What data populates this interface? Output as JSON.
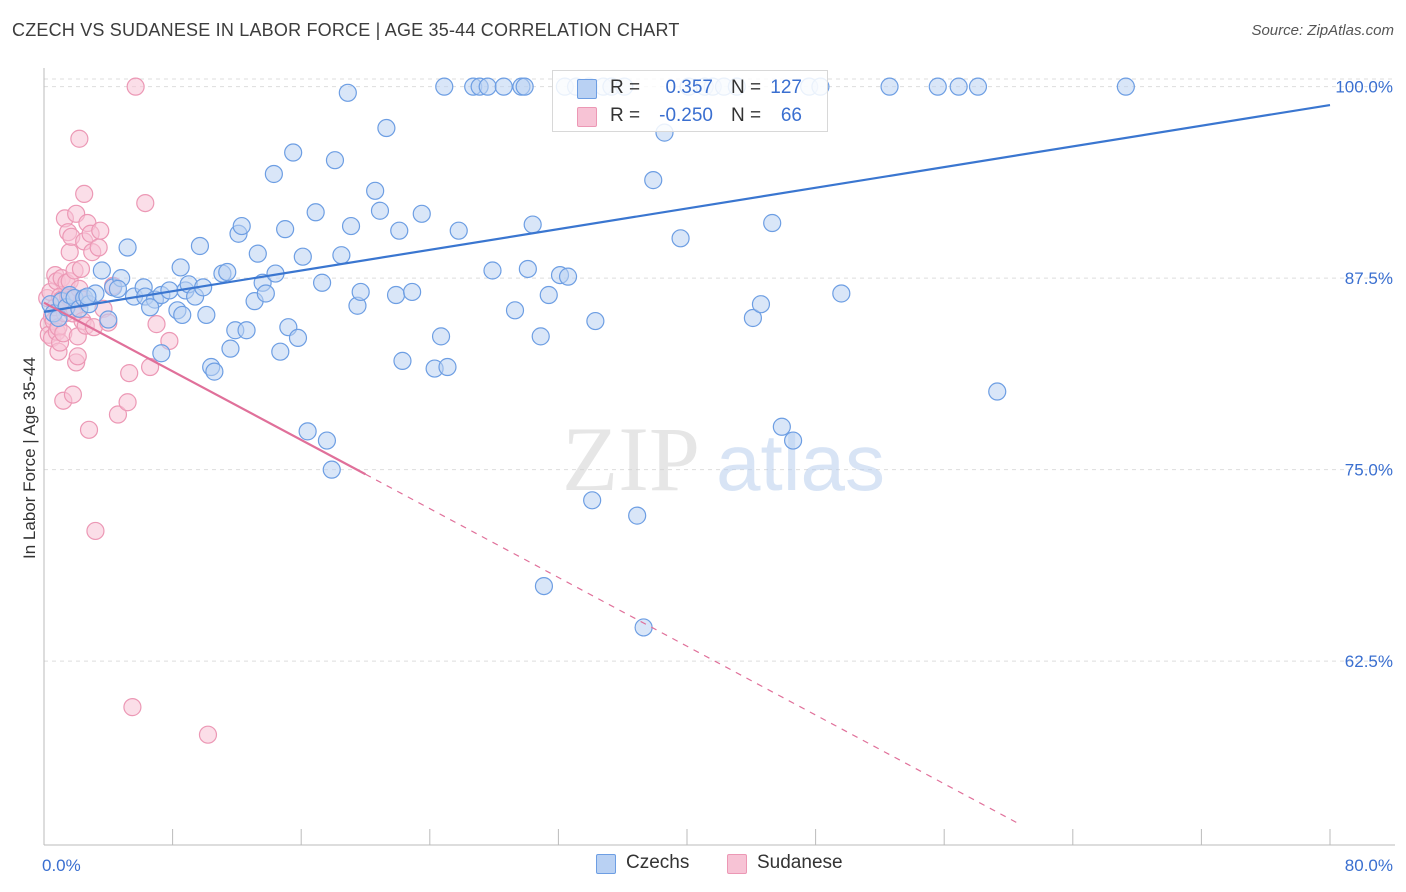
{
  "header": {
    "title": "CZECH VS SUDANESE IN LABOR FORCE | AGE 35-44 CORRELATION CHART",
    "source": "Source: ZipAtlas.com"
  },
  "watermark": {
    "zip": "ZIP",
    "atlas": "atlas"
  },
  "legend": {
    "czech": {
      "r_label": "R =",
      "r_value": "0.357",
      "n_label": "N =",
      "n_value": "127"
    },
    "sudanese": {
      "r_label": "R =",
      "r_value": "-0.250",
      "n_label": "N =",
      "n_value": "66"
    }
  },
  "bottom_legend": {
    "czechs": "Czechs",
    "sudanese": "Sudanese"
  },
  "colors": {
    "czech_fill": "#b9d1f3",
    "czech_stroke": "#6d9ee3",
    "czech_line": "#3a76d0",
    "sudanese_fill": "#f7c3d5",
    "sudanese_stroke": "#ec98b5",
    "sudanese_line": "#e0709a",
    "axis_text": "#3a6fd0",
    "grid": "#dddddd"
  },
  "chart_data": {
    "type": "scatter",
    "title": "CZECH VS SUDANESE IN LABOR FORCE | AGE 35-44 CORRELATION CHART",
    "xlabel": "",
    "ylabel": "In Labor Force | Age 35-44",
    "xlim": [
      0,
      80
    ],
    "ylim": [
      50.5,
      100.5
    ],
    "x_tick_labels": [
      "0.0%",
      "80.0%"
    ],
    "y_ticks": [
      62.5,
      75.0,
      87.5,
      100.0
    ],
    "y_tick_labels": [
      "62.5%",
      "75.0%",
      "87.5%",
      "100.0%"
    ],
    "grid": true,
    "series": [
      {
        "name": "Czechs",
        "r": 0.357,
        "n": 127,
        "trend": {
          "x": [
            0.0,
            80.0
          ],
          "y": [
            85.3,
            98.8
          ],
          "style": "solid"
        },
        "points": [
          [
            0.4,
            85.8
          ],
          [
            0.6,
            85.2
          ],
          [
            0.9,
            84.9
          ],
          [
            1.1,
            86.0
          ],
          [
            1.4,
            85.6
          ],
          [
            1.6,
            86.4
          ],
          [
            1.9,
            86.2
          ],
          [
            2.2,
            85.5
          ],
          [
            2.5,
            86.2
          ],
          [
            2.8,
            85.8
          ],
          [
            3.2,
            86.5
          ],
          [
            3.6,
            88.0
          ],
          [
            4.0,
            84.8
          ],
          [
            4.3,
            86.9
          ],
          [
            4.8,
            87.5
          ],
          [
            5.2,
            89.5
          ],
          [
            5.6,
            86.3
          ],
          [
            6.2,
            86.9
          ],
          [
            6.3,
            86.3
          ],
          [
            6.9,
            86.1
          ],
          [
            7.3,
            86.4
          ],
          [
            7.3,
            82.6
          ],
          [
            7.8,
            86.7
          ],
          [
            8.3,
            85.4
          ],
          [
            8.5,
            88.2
          ],
          [
            8.6,
            85.1
          ],
          [
            8.8,
            86.7
          ],
          [
            9.0,
            87.1
          ],
          [
            9.4,
            86.3
          ],
          [
            9.7,
            89.6
          ],
          [
            9.9,
            86.9
          ],
          [
            10.1,
            85.1
          ],
          [
            10.4,
            81.7
          ],
          [
            10.6,
            81.4
          ],
          [
            11.1,
            87.8
          ],
          [
            11.4,
            87.9
          ],
          [
            11.6,
            82.9
          ],
          [
            11.9,
            84.1
          ],
          [
            12.1,
            90.4
          ],
          [
            12.3,
            90.9
          ],
          [
            12.6,
            84.1
          ],
          [
            13.1,
            86.0
          ],
          [
            13.3,
            89.1
          ],
          [
            13.6,
            87.2
          ],
          [
            13.8,
            86.5
          ],
          [
            14.3,
            94.3
          ],
          [
            14.4,
            87.8
          ],
          [
            14.7,
            82.7
          ],
          [
            15.0,
            90.7
          ],
          [
            15.2,
            84.3
          ],
          [
            15.5,
            95.7
          ],
          [
            15.8,
            83.6
          ],
          [
            16.1,
            88.9
          ],
          [
            16.4,
            77.5
          ],
          [
            16.9,
            91.8
          ],
          [
            17.3,
            87.2
          ],
          [
            17.6,
            76.9
          ],
          [
            17.9,
            75.0
          ],
          [
            18.1,
            95.2
          ],
          [
            18.5,
            89.0
          ],
          [
            18.9,
            99.6
          ],
          [
            19.1,
            90.9
          ],
          [
            19.5,
            85.7
          ],
          [
            19.7,
            86.6
          ],
          [
            20.6,
            93.2
          ],
          [
            20.9,
            91.9
          ],
          [
            21.3,
            97.3
          ],
          [
            21.9,
            86.4
          ],
          [
            22.1,
            90.6
          ],
          [
            22.3,
            82.1
          ],
          [
            22.9,
            86.6
          ],
          [
            23.5,
            91.7
          ],
          [
            24.3,
            81.6
          ],
          [
            24.7,
            83.7
          ],
          [
            24.9,
            100.0
          ],
          [
            25.1,
            81.7
          ],
          [
            25.8,
            90.6
          ],
          [
            26.7,
            100.0
          ],
          [
            27.1,
            100.0
          ],
          [
            27.6,
            100.0
          ],
          [
            27.9,
            88.0
          ],
          [
            28.6,
            100.0
          ],
          [
            29.3,
            85.4
          ],
          [
            29.7,
            100.0
          ],
          [
            29.9,
            100.0
          ],
          [
            30.1,
            88.1
          ],
          [
            30.4,
            91.0
          ],
          [
            30.9,
            83.7
          ],
          [
            31.1,
            67.4
          ],
          [
            31.4,
            86.4
          ],
          [
            32.1,
            87.7
          ],
          [
            32.4,
            100.0
          ],
          [
            32.6,
            87.6
          ],
          [
            33.1,
            100.0
          ],
          [
            33.9,
            100.0
          ],
          [
            34.1,
            73.0
          ],
          [
            34.3,
            84.7
          ],
          [
            34.8,
            100.0
          ],
          [
            35.3,
            100.0
          ],
          [
            36.1,
            100.0
          ],
          [
            36.9,
            72.0
          ],
          [
            37.3,
            64.7
          ],
          [
            37.9,
            93.9
          ],
          [
            38.6,
            97.0
          ],
          [
            39.6,
            90.1
          ],
          [
            40.1,
            100.0
          ],
          [
            41.1,
            100.0
          ],
          [
            41.6,
            100.0
          ],
          [
            42.3,
            100.0
          ],
          [
            43.1,
            100.0
          ],
          [
            44.1,
            84.9
          ],
          [
            44.6,
            85.8
          ],
          [
            45.3,
            91.1
          ],
          [
            45.9,
            77.8
          ],
          [
            46.6,
            76.9
          ],
          [
            47.6,
            100.0
          ],
          [
            48.3,
            100.0
          ],
          [
            49.6,
            86.5
          ],
          [
            52.6,
            100.0
          ],
          [
            55.6,
            100.0
          ],
          [
            56.9,
            100.0
          ],
          [
            58.1,
            100.0
          ],
          [
            59.3,
            80.1
          ],
          [
            67.3,
            100.0
          ],
          [
            2.7,
            86.3
          ],
          [
            4.6,
            86.8
          ],
          [
            6.6,
            85.6
          ]
        ]
      },
      {
        "name": "Sudanese",
        "r": -0.25,
        "n": 66,
        "trend": {
          "x": [
            0.0,
            20.0,
            60.8
          ],
          "y": [
            85.9,
            74.7,
            51.8
          ],
          "style": "solid-then-dashed"
        },
        "points": [
          [
            0.2,
            86.2
          ],
          [
            0.3,
            84.5
          ],
          [
            0.3,
            83.8
          ],
          [
            0.4,
            86.6
          ],
          [
            0.5,
            85.0
          ],
          [
            0.5,
            83.6
          ],
          [
            0.6,
            84.7
          ],
          [
            0.7,
            85.6
          ],
          [
            0.7,
            87.7
          ],
          [
            0.8,
            87.3
          ],
          [
            0.8,
            84.0
          ],
          [
            0.9,
            82.7
          ],
          [
            0.9,
            84.3
          ],
          [
            1.0,
            86.3
          ],
          [
            1.0,
            83.3
          ],
          [
            1.1,
            87.5
          ],
          [
            1.1,
            86.1
          ],
          [
            1.2,
            83.9
          ],
          [
            1.2,
            79.5
          ],
          [
            1.3,
            85.2
          ],
          [
            1.3,
            91.4
          ],
          [
            1.4,
            87.2
          ],
          [
            1.4,
            85.6
          ],
          [
            1.5,
            90.5
          ],
          [
            1.5,
            86.3
          ],
          [
            1.6,
            89.2
          ],
          [
            1.6,
            87.3
          ],
          [
            1.7,
            90.2
          ],
          [
            1.7,
            86.1
          ],
          [
            1.8,
            85.2
          ],
          [
            1.8,
            79.9
          ],
          [
            1.9,
            88.0
          ],
          [
            1.9,
            85.5
          ],
          [
            2.0,
            91.7
          ],
          [
            2.0,
            82.0
          ],
          [
            2.1,
            82.4
          ],
          [
            2.1,
            83.7
          ],
          [
            2.2,
            96.6
          ],
          [
            2.2,
            86.8
          ],
          [
            2.3,
            88.1
          ],
          [
            2.4,
            84.7
          ],
          [
            2.4,
            86.1
          ],
          [
            2.5,
            93.0
          ],
          [
            2.5,
            89.9
          ],
          [
            2.6,
            84.4
          ],
          [
            2.7,
            91.1
          ],
          [
            2.8,
            77.6
          ],
          [
            2.9,
            90.4
          ],
          [
            3.0,
            89.2
          ],
          [
            3.1,
            84.3
          ],
          [
            3.2,
            71.0
          ],
          [
            3.4,
            89.5
          ],
          [
            3.5,
            90.6
          ],
          [
            3.7,
            85.5
          ],
          [
            4.0,
            84.6
          ],
          [
            4.3,
            87.0
          ],
          [
            4.6,
            78.6
          ],
          [
            5.2,
            79.4
          ],
          [
            5.3,
            81.3
          ],
          [
            5.5,
            59.5
          ],
          [
            5.7,
            100.0
          ],
          [
            6.3,
            92.4
          ],
          [
            6.6,
            81.7
          ],
          [
            7.0,
            84.5
          ],
          [
            7.8,
            83.4
          ],
          [
            10.2,
            57.7
          ]
        ]
      }
    ]
  }
}
